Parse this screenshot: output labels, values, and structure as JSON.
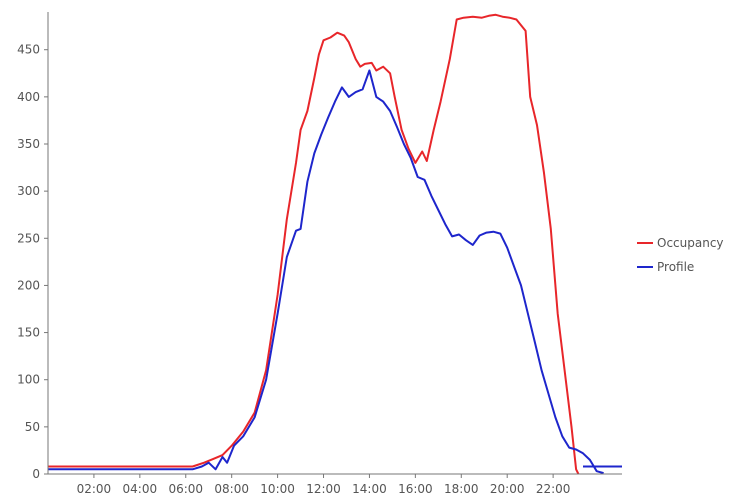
{
  "chart_data": {
    "type": "line",
    "title": "",
    "xlabel": "",
    "ylabel": "",
    "x_unit": "hour",
    "xlim": [
      0,
      24.2
    ],
    "ylim": [
      0,
      490
    ],
    "x_ticks": [
      {
        "value": 2,
        "label": "02:00"
      },
      {
        "value": 4,
        "label": "04:00"
      },
      {
        "value": 6,
        "label": "06:00"
      },
      {
        "value": 8,
        "label": "08:00"
      },
      {
        "value": 10,
        "label": "10:00"
      },
      {
        "value": 12,
        "label": "12:00"
      },
      {
        "value": 14,
        "label": "14:00"
      },
      {
        "value": 16,
        "label": "16:00"
      },
      {
        "value": 18,
        "label": "18:00"
      },
      {
        "value": 20,
        "label": "20:00"
      },
      {
        "value": 22,
        "label": "22:00"
      }
    ],
    "y_ticks": [
      {
        "value": 0,
        "label": "0"
      },
      {
        "value": 50,
        "label": "50"
      },
      {
        "value": 100,
        "label": "100"
      },
      {
        "value": 150,
        "label": "150"
      },
      {
        "value": 200,
        "label": "200"
      },
      {
        "value": 250,
        "label": "250"
      },
      {
        "value": 300,
        "label": "300"
      },
      {
        "value": 350,
        "label": "350"
      },
      {
        "value": 400,
        "label": "400"
      },
      {
        "value": 450,
        "label": "450"
      }
    ],
    "grid": false,
    "legend_position": "right",
    "series": [
      {
        "name": "Occupancy",
        "color": "#e8262a",
        "points": [
          [
            0,
            8
          ],
          [
            6.3,
            8
          ],
          [
            6.8,
            12
          ],
          [
            7.2,
            16
          ],
          [
            7.6,
            20
          ],
          [
            8.0,
            30
          ],
          [
            8.5,
            45
          ],
          [
            9.0,
            65
          ],
          [
            9.5,
            110
          ],
          [
            10.0,
            190
          ],
          [
            10.4,
            270
          ],
          [
            10.8,
            330
          ],
          [
            11.0,
            365
          ],
          [
            11.3,
            385
          ],
          [
            11.6,
            420
          ],
          [
            11.8,
            445
          ],
          [
            12.0,
            460
          ],
          [
            12.3,
            463
          ],
          [
            12.6,
            468
          ],
          [
            12.9,
            465
          ],
          [
            13.1,
            458
          ],
          [
            13.4,
            440
          ],
          [
            13.6,
            432
          ],
          [
            13.8,
            435
          ],
          [
            14.1,
            436
          ],
          [
            14.3,
            428
          ],
          [
            14.6,
            432
          ],
          [
            14.9,
            425
          ],
          [
            15.1,
            400
          ],
          [
            15.4,
            365
          ],
          [
            15.7,
            345
          ],
          [
            16.0,
            330
          ],
          [
            16.3,
            342
          ],
          [
            16.5,
            332
          ],
          [
            16.8,
            365
          ],
          [
            17.1,
            395
          ],
          [
            17.5,
            440
          ],
          [
            17.8,
            482
          ],
          [
            18.1,
            484
          ],
          [
            18.5,
            485
          ],
          [
            18.9,
            484
          ],
          [
            19.2,
            486
          ],
          [
            19.5,
            487
          ],
          [
            19.8,
            485
          ],
          [
            20.1,
            484
          ],
          [
            20.4,
            482
          ],
          [
            20.8,
            470
          ],
          [
            21.0,
            400
          ],
          [
            21.3,
            370
          ],
          [
            21.6,
            320
          ],
          [
            21.9,
            260
          ],
          [
            22.2,
            170
          ],
          [
            22.5,
            110
          ],
          [
            22.8,
            50
          ],
          [
            23.0,
            5
          ],
          [
            23.1,
            0
          ]
        ]
      },
      {
        "name": "Profile",
        "color": "#1e26cc",
        "points": [
          [
            0,
            5
          ],
          [
            6.3,
            5
          ],
          [
            6.7,
            8
          ],
          [
            7.0,
            12
          ],
          [
            7.3,
            5
          ],
          [
            7.6,
            18
          ],
          [
            7.8,
            12
          ],
          [
            8.1,
            30
          ],
          [
            8.5,
            40
          ],
          [
            9.0,
            60
          ],
          [
            9.5,
            100
          ],
          [
            10.0,
            170
          ],
          [
            10.4,
            230
          ],
          [
            10.8,
            258
          ],
          [
            11.0,
            260
          ],
          [
            11.3,
            310
          ],
          [
            11.6,
            340
          ],
          [
            11.9,
            360
          ],
          [
            12.2,
            378
          ],
          [
            12.5,
            395
          ],
          [
            12.8,
            410
          ],
          [
            13.1,
            400
          ],
          [
            13.4,
            405
          ],
          [
            13.7,
            408
          ],
          [
            14.0,
            428
          ],
          [
            14.3,
            400
          ],
          [
            14.6,
            395
          ],
          [
            14.9,
            385
          ],
          [
            15.2,
            368
          ],
          [
            15.5,
            350
          ],
          [
            15.8,
            335
          ],
          [
            16.1,
            315
          ],
          [
            16.4,
            312
          ],
          [
            16.7,
            295
          ],
          [
            17.0,
            280
          ],
          [
            17.3,
            265
          ],
          [
            17.6,
            252
          ],
          [
            17.9,
            254
          ],
          [
            18.2,
            248
          ],
          [
            18.5,
            243
          ],
          [
            18.8,
            253
          ],
          [
            19.1,
            256
          ],
          [
            19.4,
            257
          ],
          [
            19.7,
            255
          ],
          [
            20.0,
            240
          ],
          [
            20.3,
            220
          ],
          [
            20.6,
            200
          ],
          [
            20.9,
            170
          ],
          [
            21.2,
            140
          ],
          [
            21.5,
            110
          ],
          [
            21.8,
            85
          ],
          [
            22.1,
            60
          ],
          [
            22.4,
            40
          ],
          [
            22.7,
            28
          ],
          [
            23.0,
            26
          ],
          [
            23.3,
            22
          ],
          [
            23.6,
            15
          ],
          [
            23.9,
            3
          ],
          [
            24.2,
            1
          ]
        ]
      },
      {
        "name": "",
        "color": "#1e26cc",
        "points": [
          [
            23.3,
            8
          ],
          [
            25.0,
            8
          ]
        ]
      }
    ]
  }
}
